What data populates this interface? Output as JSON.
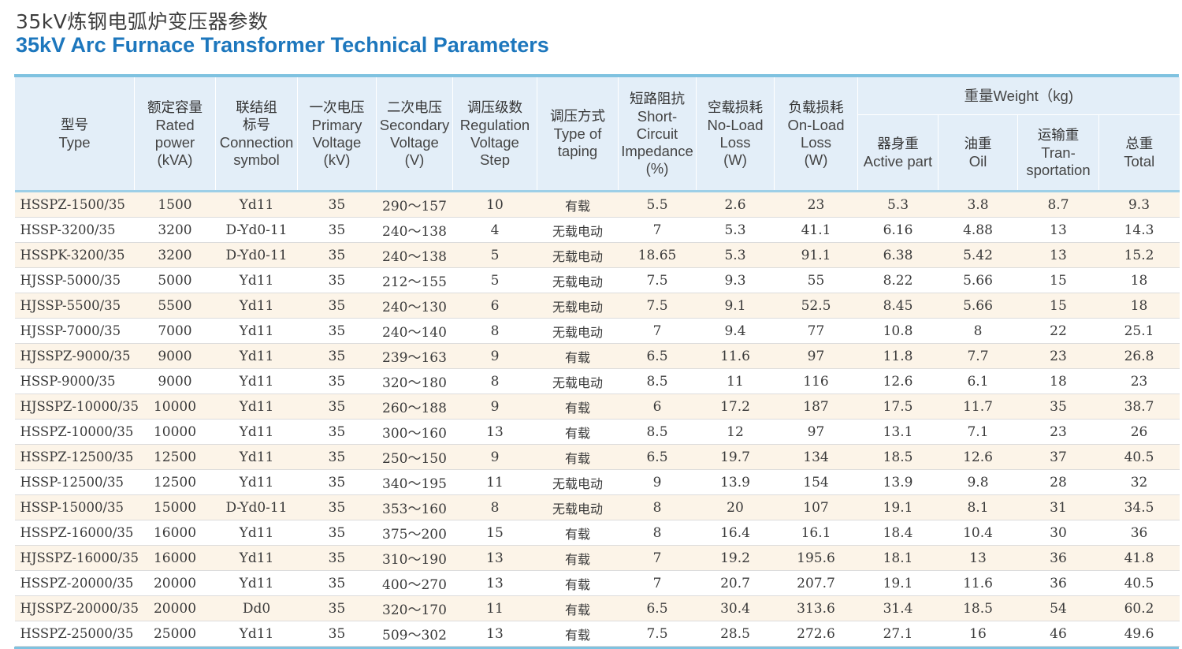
{
  "title_cn": "35kV炼钢电弧炉变压器参数",
  "title_en": "35kV Arc Furnace Transformer Technical Parameters",
  "headers": {
    "type": {
      "cn": "型号",
      "en": "Type"
    },
    "power": {
      "cn": "额定容量",
      "en1": "Rated",
      "en2": "power",
      "en3": "(kVA)"
    },
    "symbol": {
      "cn1": "联结组",
      "cn2": "标号",
      "en1": "Connection",
      "en2": "symbol"
    },
    "primary": {
      "cn": "一次电压",
      "en1": "Primary",
      "en2": "Voltage",
      "en3": "(kV)"
    },
    "secondary": {
      "cn": "二次电压",
      "en1": "Secondary",
      "en2": "Voltage",
      "en3": "(V)"
    },
    "step": {
      "cn": "调压级数",
      "en1": "Regulation",
      "en2": "Voltage",
      "en3": "Step"
    },
    "taping": {
      "cn": "调压方式",
      "en1": "Type of",
      "en2": "taping"
    },
    "impedance": {
      "cn": "短路阻抗",
      "en1": "Short-",
      "en2": "Circuit",
      "en3": "Impedance",
      "en4": "(%)"
    },
    "noload": {
      "cn": "空载损耗",
      "en1": "No-Load",
      "en2": "Loss",
      "en3": "(W)"
    },
    "onload": {
      "cn": "负载损耗",
      "en1": "On-Load",
      "en2": "Loss",
      "en3": "(W)"
    },
    "weight": "重量Weight（kg)",
    "active": {
      "cn": "器身重",
      "en": "Active part"
    },
    "oil": {
      "cn": "油重",
      "en": "Oil"
    },
    "transport": {
      "cn": "运输重",
      "en1": "Tran-",
      "en2": "sportation"
    },
    "total": {
      "cn": "总重",
      "en": "Total"
    }
  },
  "rows": [
    [
      "HSSPZ-1500/35",
      "1500",
      "Yd11",
      "35",
      "290～157",
      "10",
      "有载",
      "5.5",
      "2.6",
      "23",
      "5.3",
      "3.8",
      "8.7",
      "9.3"
    ],
    [
      "HSSP-3200/35",
      "3200",
      "D-Yd0-11",
      "35",
      "240～138",
      "4",
      "无载电动",
      "7",
      "5.3",
      "41.1",
      "6.16",
      "4.88",
      "13",
      "14.3"
    ],
    [
      "HSSPK-3200/35",
      "3200",
      "D-Yd0-11",
      "35",
      "240～138",
      "5",
      "无载电动",
      "18.65",
      "5.3",
      "91.1",
      "6.38",
      "5.42",
      "13",
      "15.2"
    ],
    [
      "HJSSP-5000/35",
      "5000",
      "Yd11",
      "35",
      "212～155",
      "5",
      "无载电动",
      "7.5",
      "9.3",
      "55",
      "8.22",
      "5.66",
      "15",
      "18"
    ],
    [
      "HJSSP-5500/35",
      "5500",
      "Yd11",
      "35",
      "240～130",
      "6",
      "无载电动",
      "7.5",
      "9.1",
      "52.5",
      "8.45",
      "5.66",
      "15",
      "18"
    ],
    [
      "HJSSP-7000/35",
      "7000",
      "Yd11",
      "35",
      "240～140",
      "8",
      "无载电动",
      "7",
      "9.4",
      "77",
      "10.8",
      "8",
      "22",
      "25.1"
    ],
    [
      "HJSSPZ-9000/35",
      "9000",
      "Yd11",
      "35",
      "239～163",
      "9",
      "有载",
      "6.5",
      "11.6",
      "97",
      "11.8",
      "7.7",
      "23",
      "26.8"
    ],
    [
      "HSSP-9000/35",
      "9000",
      "Yd11",
      "35",
      "320～180",
      "8",
      "无载电动",
      "8.5",
      "11",
      "116",
      "12.6",
      "6.1",
      "18",
      "23"
    ],
    [
      "HJSSPZ-10000/35",
      "10000",
      "Yd11",
      "35",
      "260～188",
      "9",
      "有载",
      "6",
      "17.2",
      "187",
      "17.5",
      "11.7",
      "35",
      "38.7"
    ],
    [
      "HSSPZ-10000/35",
      "10000",
      "Yd11",
      "35",
      "300～160",
      "13",
      "有载",
      "8.5",
      "12",
      "97",
      "13.1",
      "7.1",
      "23",
      "26"
    ],
    [
      "HSSPZ-12500/35",
      "12500",
      "Yd11",
      "35",
      "250～150",
      "9",
      "有载",
      "6.5",
      "19.7",
      "134",
      "18.5",
      "12.6",
      "37",
      "40.5"
    ],
    [
      "HSSP-12500/35",
      "12500",
      "Yd11",
      "35",
      "340～195",
      "11",
      "无载电动",
      "9",
      "13.9",
      "154",
      "13.9",
      "9.8",
      "28",
      "32"
    ],
    [
      "HSSP-15000/35",
      "15000",
      "D-Yd0-11",
      "35",
      "353～160",
      "8",
      "无载电动",
      "8",
      "20",
      "107",
      "19.1",
      "8.1",
      "31",
      "34.5"
    ],
    [
      "HSSPZ-16000/35",
      "16000",
      "Yd11",
      "35",
      "375～200",
      "15",
      "有载",
      "8",
      "16.4",
      "16.1",
      "18.4",
      "10.4",
      "30",
      "36"
    ],
    [
      "HJSSPZ-16000/35",
      "16000",
      "Yd11",
      "35",
      "310～190",
      "13",
      "有载",
      "7",
      "19.2",
      "195.6",
      "18.1",
      "13",
      "36",
      "41.8"
    ],
    [
      "HSSPZ-20000/35",
      "20000",
      "Yd11",
      "35",
      "400～270",
      "13",
      "有载",
      "7",
      "20.7",
      "207.7",
      "19.1",
      "11.6",
      "36",
      "40.5"
    ],
    [
      "HJSSPZ-20000/35",
      "20000",
      "Dd0",
      "35",
      "320～170",
      "11",
      "有载",
      "6.5",
      "30.4",
      "313.6",
      "31.4",
      "18.5",
      "54",
      "60.2"
    ],
    [
      "HSSPZ-25000/35",
      "25000",
      "Yd11",
      "35",
      "509～302",
      "13",
      "有载",
      "7.5",
      "28.5",
      "272.6",
      "27.1",
      "16",
      "46",
      "49.6"
    ]
  ]
}
